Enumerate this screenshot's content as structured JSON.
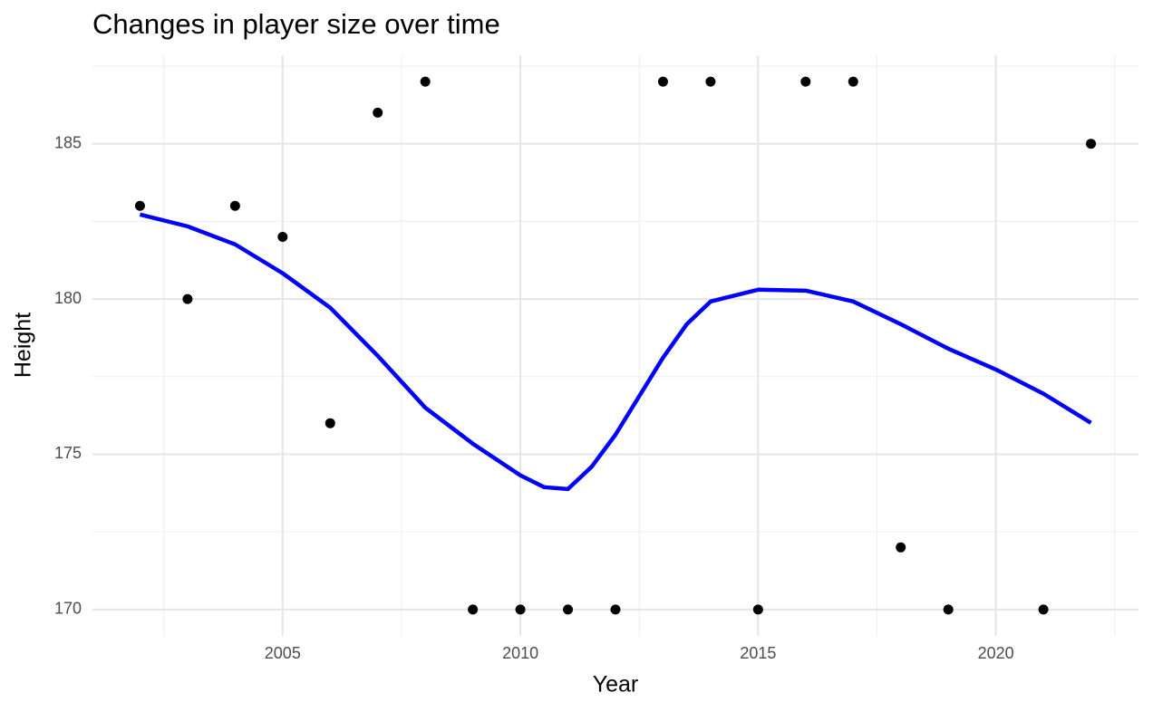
{
  "chart_data": {
    "type": "scatter",
    "title": "Changes in player size over time",
    "xlabel": "Year",
    "ylabel": "Height",
    "x": [
      2002,
      2003,
      2004,
      2005,
      2006,
      2007,
      2008,
      2009,
      2010,
      2011,
      2012,
      2013,
      2014,
      2015,
      2016,
      2017,
      2018,
      2019,
      2021,
      2022
    ],
    "values": [
      183,
      180,
      183,
      182,
      176,
      186,
      187,
      170,
      170,
      170,
      170,
      187,
      187,
      170,
      187,
      187,
      172,
      170,
      170,
      185
    ],
    "color": "#000000",
    "smooth": {
      "type": "line",
      "color": "#0000ff",
      "x": [
        2002,
        2003,
        2004,
        2005,
        2006,
        2007,
        2008,
        2009,
        2010,
        2010.5,
        2011,
        2011.5,
        2012,
        2013,
        2013.5,
        2014,
        2015,
        2016,
        2017,
        2018,
        2019,
        2020,
        2021,
        2022
      ],
      "values": [
        182.72,
        182.34,
        181.76,
        180.83,
        179.72,
        178.17,
        176.5,
        175.34,
        174.32,
        173.94,
        173.88,
        174.6,
        175.63,
        178.11,
        179.19,
        179.92,
        180.3,
        180.27,
        179.92,
        179.19,
        178.4,
        177.73,
        176.95,
        176.01
      ]
    },
    "xlim": [
      2001,
      2023
    ],
    "ylim": [
      169.15,
      187.85
    ],
    "xticks": [
      2005,
      2010,
      2015,
      2020
    ],
    "yticks": [
      170,
      175,
      180,
      185
    ],
    "x_minor_ticks": [
      2002.5,
      2007.5,
      2012.5,
      2017.5,
      2022.5
    ],
    "y_minor_ticks": [
      172.5,
      177.5,
      182.5,
      187.5
    ],
    "grid": true
  }
}
